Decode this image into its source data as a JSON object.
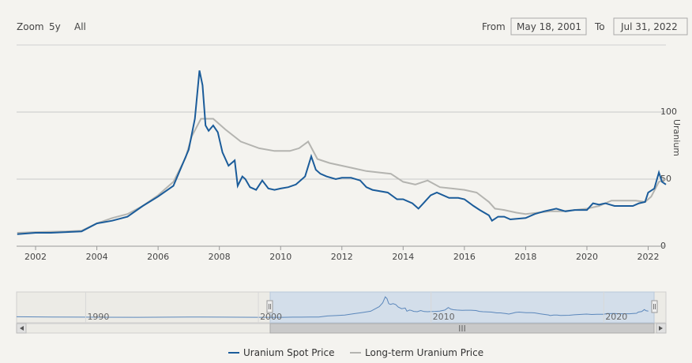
{
  "range_selector": {
    "zoom_label": "Zoom",
    "buttons": [
      "5y",
      "All"
    ],
    "from_label": "From",
    "from_value": "May 18, 2001",
    "to_label": "To",
    "to_value": "Jul 31, 2022"
  },
  "colors": {
    "spot": "#1b5c9a",
    "longterm": "#b4b4b0",
    "grid": "#c8c8c8",
    "navigator_fill": "#cfdcea",
    "navigator_line": "#5b87bb"
  },
  "chart_data": {
    "type": "line",
    "title": "",
    "xlabel": "",
    "ylabel": "Uranium",
    "xlim": [
      2001.38,
      2022.58
    ],
    "ylim": [
      0,
      150
    ],
    "y_ticks": [
      "0",
      "50",
      "100"
    ],
    "x_ticks": [
      "2002",
      "2004",
      "2006",
      "2008",
      "2010",
      "2012",
      "2014",
      "2016",
      "2018",
      "2020",
      "2022"
    ],
    "grid": true,
    "series": [
      {
        "name": "Uranium Spot Price",
        "x": [
          2001.4,
          2002.0,
          2002.5,
          2003.0,
          2003.5,
          2004.0,
          2004.5,
          2005.0,
          2005.5,
          2006.0,
          2006.5,
          2007.0,
          2007.2,
          2007.35,
          2007.45,
          2007.55,
          2007.65,
          2007.8,
          2007.95,
          2008.1,
          2008.3,
          2008.5,
          2008.6,
          2008.75,
          2008.85,
          2009.0,
          2009.2,
          2009.4,
          2009.6,
          2009.8,
          2010.0,
          2010.25,
          2010.5,
          2010.8,
          2011.0,
          2011.15,
          2011.3,
          2011.5,
          2011.8,
          2012.0,
          2012.3,
          2012.6,
          2012.8,
          2013.0,
          2013.5,
          2013.8,
          2014.0,
          2014.3,
          2014.5,
          2014.7,
          2014.9,
          2015.1,
          2015.5,
          2015.8,
          2016.0,
          2016.3,
          2016.5,
          2016.8,
          2016.9,
          2017.1,
          2017.3,
          2017.5,
          2018.0,
          2018.3,
          2018.6,
          2019.0,
          2019.3,
          2019.6,
          2020.0,
          2020.2,
          2020.4,
          2020.6,
          2020.9,
          2021.2,
          2021.5,
          2021.7,
          2021.9,
          2022.0,
          2022.2,
          2022.35,
          2022.45,
          2022.58
        ],
        "values": [
          9,
          10,
          10,
          10.5,
          11,
          17,
          19,
          22,
          30,
          37,
          45,
          72,
          95,
          131,
          120,
          90,
          86,
          90,
          85,
          70,
          60,
          64,
          45,
          52,
          50,
          44,
          42,
          49,
          43,
          42,
          43,
          44,
          46,
          52,
          67,
          57,
          54,
          52,
          50,
          51,
          51,
          49,
          44,
          42,
          40,
          35,
          35,
          32,
          28,
          33,
          38,
          40,
          36,
          36,
          35,
          30,
          27,
          23,
          19,
          22,
          22,
          20,
          21,
          24,
          26,
          28,
          26,
          27,
          27,
          32,
          31,
          32,
          30,
          30,
          30,
          32,
          33,
          40,
          43,
          55,
          48,
          46
        ]
      },
      {
        "name": "Long-term Uranium Price",
        "x": [
          2001.4,
          2002.0,
          2003.0,
          2003.5,
          2004.0,
          2004.5,
          2005.0,
          2005.5,
          2006.0,
          2006.5,
          2006.9,
          2007.1,
          2007.4,
          2007.8,
          2008.2,
          2008.7,
          2009.3,
          2009.8,
          2010.3,
          2010.6,
          2010.9,
          2011.2,
          2011.6,
          2012.0,
          2012.4,
          2012.8,
          2013.2,
          2013.6,
          2014.0,
          2014.4,
          2014.8,
          2015.2,
          2015.6,
          2016.0,
          2016.4,
          2016.8,
          2017.0,
          2017.3,
          2017.7,
          2018.0,
          2018.4,
          2018.8,
          2019.2,
          2019.6,
          2020.0,
          2020.4,
          2020.8,
          2021.2,
          2021.6,
          2021.9,
          2022.1,
          2022.35,
          2022.58
        ],
        "values": [
          10,
          10.5,
          11,
          11.5,
          17,
          21,
          24,
          30,
          38,
          48,
          66,
          82,
          95,
          95,
          87,
          78,
          73,
          71,
          71,
          73,
          78,
          65,
          62,
          60,
          58,
          56,
          55,
          54,
          48,
          46,
          49,
          44,
          43,
          42,
          40,
          33,
          28,
          27,
          25,
          24,
          25,
          26,
          26,
          27,
          28,
          30,
          34,
          34,
          34,
          33,
          37,
          48,
          50
        ]
      }
    ]
  },
  "navigator": {
    "x_labels": [
      "1990",
      "2000",
      "2010",
      "2020"
    ],
    "scrollbar_grip": "III"
  },
  "legend": {
    "items": [
      "Uranium Spot Price",
      "Long-term Uranium Price"
    ]
  }
}
